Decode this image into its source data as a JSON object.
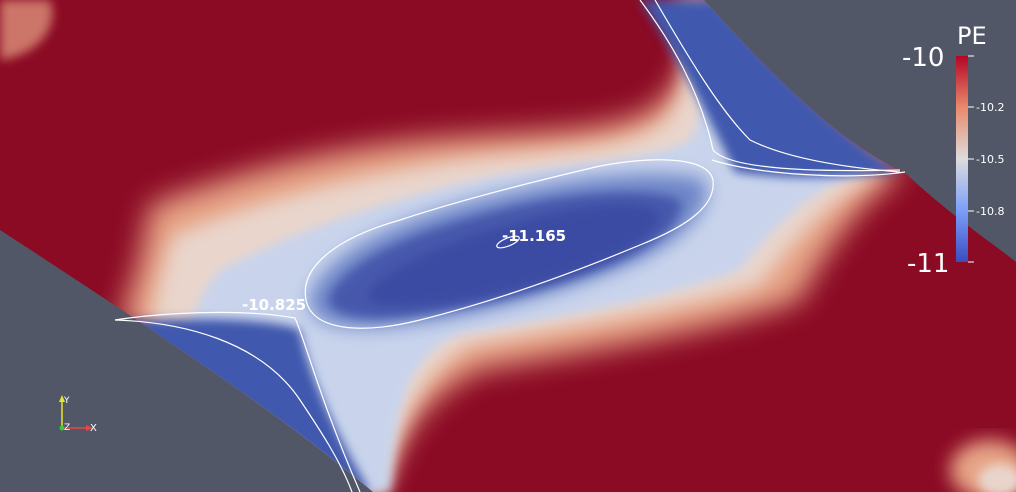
{
  "viewport": {
    "colors": {
      "background": "#525768",
      "high": "#8b0a24",
      "low": "#3b4fa6",
      "mid": "#dde2ea",
      "contour": "#ffffff"
    }
  },
  "contour_labels": {
    "min_label": "-11.165",
    "saddle_label": "-10.825"
  },
  "colorbar": {
    "title": "PE",
    "range": [
      -11,
      -10
    ],
    "max_label": "-10",
    "min_label": "-11",
    "ticks": [
      "-10.2",
      "-10.5",
      "-10.8"
    ]
  },
  "axes_triad": {
    "x": "X",
    "y": "Y",
    "z": "Z"
  }
}
